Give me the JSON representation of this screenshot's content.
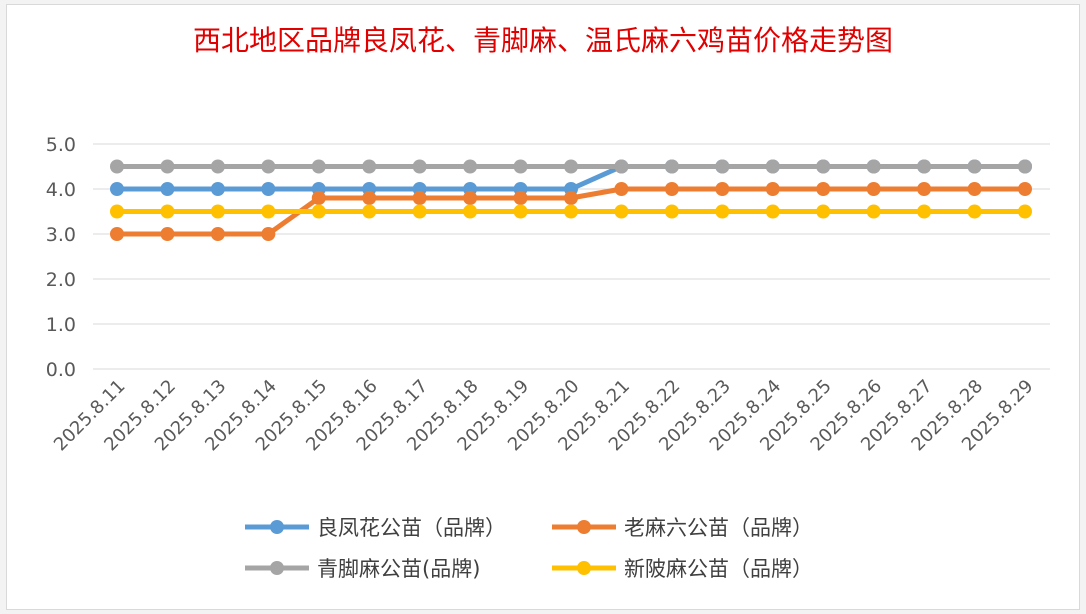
{
  "chart_data": {
    "type": "line",
    "title": "西北地区品牌良凤花、青脚麻、温氏麻六鸡苗价格走势图",
    "xlabel": "",
    "ylabel": "",
    "ylim": [
      0,
      5
    ],
    "yticks": [
      "0.0",
      "1.0",
      "2.0",
      "3.0",
      "4.0",
      "5.0"
    ],
    "grid": true,
    "legend_position": "bottom",
    "categories": [
      "2025.8.11",
      "2025.8.12",
      "2025.8.13",
      "2025.8.14",
      "2025.8.15",
      "2025.8.16",
      "2025.8.17",
      "2025.8.18",
      "2025.8.19",
      "2025.8.20",
      "2025.8.21",
      "2025.8.22",
      "2025.8.23",
      "2025.8.24",
      "2025.8.25",
      "2025.8.26",
      "2025.8.27",
      "2025.8.28",
      "2025.8.29"
    ],
    "series": [
      {
        "name": "良凤花公苗（品牌）",
        "color": "#5b9bd5",
        "values": [
          4.0,
          4.0,
          4.0,
          4.0,
          4.0,
          4.0,
          4.0,
          4.0,
          4.0,
          4.0,
          4.5,
          4.5,
          4.5,
          4.5,
          4.5,
          4.5,
          4.5,
          4.5,
          4.5
        ]
      },
      {
        "name": "老麻六公苗（品牌）",
        "color": "#ed7d31",
        "values": [
          3.0,
          3.0,
          3.0,
          3.0,
          3.8,
          3.8,
          3.8,
          3.8,
          3.8,
          3.8,
          4.0,
          4.0,
          4.0,
          4.0,
          4.0,
          4.0,
          4.0,
          4.0,
          4.0
        ]
      },
      {
        "name": "青脚麻公苗(品牌)",
        "color": "#a5a5a5",
        "values": [
          4.5,
          4.5,
          4.5,
          4.5,
          4.5,
          4.5,
          4.5,
          4.5,
          4.5,
          4.5,
          4.5,
          4.5,
          4.5,
          4.5,
          4.5,
          4.5,
          4.5,
          4.5,
          4.5
        ]
      },
      {
        "name": "新陂麻公苗（品牌）",
        "color": "#ffc000",
        "values": [
          3.5,
          3.5,
          3.5,
          3.5,
          3.5,
          3.5,
          3.5,
          3.5,
          3.5,
          3.5,
          3.5,
          3.5,
          3.5,
          3.5,
          3.5,
          3.5,
          3.5,
          3.5,
          3.5
        ]
      }
    ]
  }
}
